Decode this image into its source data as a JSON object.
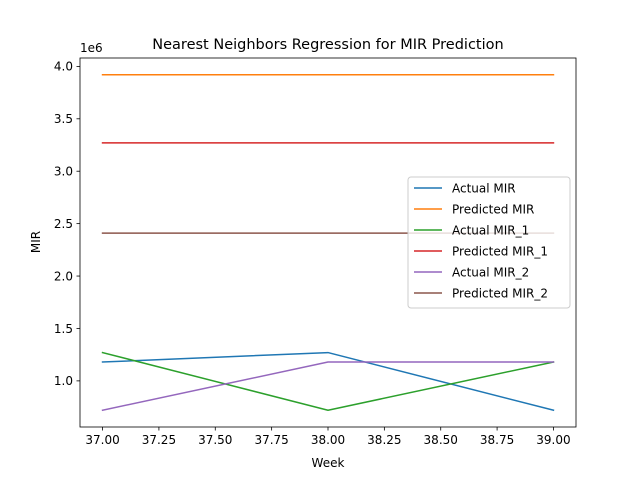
{
  "chart_data": {
    "type": "line",
    "title": "Nearest Neighbors Regression for MIR Prediction",
    "xlabel": "Week",
    "ylabel": "MIR",
    "y_offset_label": "1e6",
    "x": [
      37,
      38,
      39
    ],
    "xlim": [
      36.9,
      39.1
    ],
    "ylim": [
      560000.0,
      4080000.0
    ],
    "x_ticks": [
      37.0,
      37.25,
      37.5,
      37.75,
      38.0,
      38.25,
      38.5,
      38.75,
      39.0
    ],
    "x_tick_labels": [
      "37.00",
      "37.25",
      "37.50",
      "37.75",
      "38.00",
      "38.25",
      "38.50",
      "38.75",
      "39.00"
    ],
    "y_ticks": [
      1000000.0,
      1500000.0,
      2000000.0,
      2500000.0,
      3000000.0,
      3500000.0,
      4000000.0
    ],
    "y_tick_labels": [
      "1.0",
      "1.5",
      "2.0",
      "2.5",
      "3.0",
      "3.5",
      "4.0"
    ],
    "grid": false,
    "legend_position": "center-right",
    "series": [
      {
        "name": "Actual MIR",
        "color": "#1f77b4",
        "values": [
          1180000.0,
          1270000.0,
          720000.0
        ]
      },
      {
        "name": "Predicted MIR",
        "color": "#ff7f0e",
        "values": [
          3920000.0,
          3920000.0,
          3920000.0
        ]
      },
      {
        "name": "Actual MIR_1",
        "color": "#2ca02c",
        "values": [
          1270000.0,
          720000.0,
          1180000.0
        ]
      },
      {
        "name": "Predicted MIR_1",
        "color": "#d62728",
        "values": [
          3270000.0,
          3270000.0,
          3270000.0
        ]
      },
      {
        "name": "Actual MIR_2",
        "color": "#9467bd",
        "values": [
          720000.0,
          1180000.0,
          1180000.0
        ]
      },
      {
        "name": "Predicted MIR_2",
        "color": "#8c564b",
        "values": [
          2410000.0,
          2410000.0,
          2410000.0
        ]
      }
    ]
  }
}
